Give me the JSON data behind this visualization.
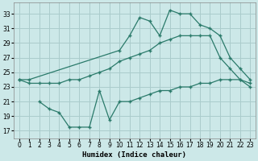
{
  "xlabel": "Humidex (Indice chaleur)",
  "bg_color": "#cce8e8",
  "grid_color": "#aacccc",
  "line_color": "#2a7a6a",
  "xlim": [
    -0.5,
    23.5
  ],
  "ylim": [
    16,
    34.5
  ],
  "xticks": [
    0,
    1,
    2,
    3,
    4,
    5,
    6,
    7,
    8,
    9,
    10,
    11,
    12,
    13,
    14,
    15,
    16,
    17,
    18,
    19,
    20,
    21,
    22,
    23
  ],
  "yticks": [
    17,
    19,
    21,
    23,
    25,
    27,
    29,
    31,
    33
  ],
  "curve_top": {
    "x": [
      0,
      1,
      10,
      11,
      12,
      13,
      14,
      15,
      16,
      17,
      18,
      19,
      20,
      21,
      22,
      23
    ],
    "y": [
      24,
      24,
      28,
      30,
      32.5,
      32,
      30,
      33.5,
      33,
      33,
      31.5,
      31,
      30,
      27,
      25.5,
      24
    ]
  },
  "curve_mid": {
    "x": [
      0,
      1,
      2,
      3,
      4,
      5,
      6,
      7,
      8,
      9,
      10,
      11,
      12,
      13,
      14,
      15,
      16,
      17,
      18,
      19,
      20,
      21,
      22,
      23
    ],
    "y": [
      24,
      23.5,
      23.5,
      23.5,
      23.5,
      24,
      24,
      24.5,
      25,
      25.5,
      26.5,
      27,
      27.5,
      28,
      29,
      29.5,
      30,
      30,
      30,
      30,
      27,
      25.5,
      24,
      23
    ]
  },
  "curve_low": {
    "x": [
      2,
      3,
      4,
      5,
      6,
      7,
      8,
      9,
      10,
      11,
      12,
      13,
      14,
      15,
      16,
      17,
      18,
      19,
      20,
      21,
      22,
      23
    ],
    "y": [
      21,
      20,
      19.5,
      17.5,
      17.5,
      17.5,
      22.5,
      18.5,
      21,
      21,
      21.5,
      22,
      22.5,
      22.5,
      23,
      23,
      23.5,
      23.5,
      24,
      24,
      24,
      23.5
    ]
  }
}
